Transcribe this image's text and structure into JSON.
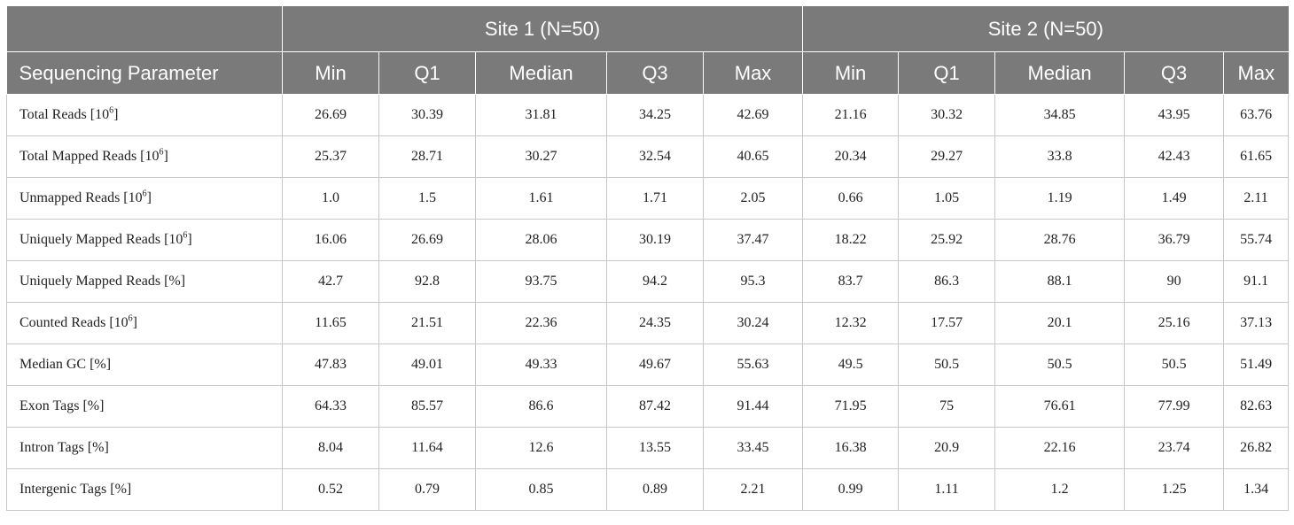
{
  "header": {
    "site1": "Site 1 (N=50)",
    "site2": "Site 2 (N=50)",
    "param": "Sequencing Parameter",
    "stats": [
      "Min",
      "Q1",
      "Median",
      "Q3",
      "Max"
    ]
  },
  "rows": [
    {
      "label": "Total Reads [10",
      "sup": "6",
      "suffix": "]",
      "s1": [
        "26.69",
        "30.39",
        "31.81",
        "34.25",
        "42.69"
      ],
      "s2": [
        "21.16",
        "30.32",
        "34.85",
        "43.95",
        "63.76"
      ]
    },
    {
      "label": "Total Mapped Reads [10",
      "sup": "6",
      "suffix": "]",
      "s1": [
        "25.37",
        "28.71",
        "30.27",
        "32.54",
        "40.65"
      ],
      "s2": [
        "20.34",
        "29.27",
        "33.8",
        "42.43",
        "61.65"
      ]
    },
    {
      "label": "Unmapped Reads [10",
      "sup": "6",
      "suffix": "]",
      "s1": [
        "1.0",
        "1.5",
        "1.61",
        "1.71",
        "2.05"
      ],
      "s2": [
        "0.66",
        "1.05",
        "1.19",
        "1.49",
        "2.11"
      ]
    },
    {
      "label": "Uniquely Mapped Reads [10",
      "sup": "6",
      "suffix": "]",
      "s1": [
        "16.06",
        "26.69",
        "28.06",
        "30.19",
        "37.47"
      ],
      "s2": [
        "18.22",
        "25.92",
        "28.76",
        "36.79",
        "55.74"
      ]
    },
    {
      "label": "Uniquely Mapped Reads [%]",
      "sup": "",
      "suffix": "",
      "s1": [
        "42.7",
        "92.8",
        "93.75",
        "94.2",
        "95.3"
      ],
      "s2": [
        "83.7",
        "86.3",
        "88.1",
        "90",
        "91.1"
      ]
    },
    {
      "label": "Counted Reads [10",
      "sup": "6",
      "suffix": "]",
      "s1": [
        "11.65",
        "21.51",
        "22.36",
        "24.35",
        "30.24"
      ],
      "s2": [
        "12.32",
        "17.57",
        "20.1",
        "25.16",
        "37.13"
      ]
    },
    {
      "label": "Median GC [%]",
      "sup": "",
      "suffix": "",
      "s1": [
        "47.83",
        "49.01",
        "49.33",
        "49.67",
        "55.63"
      ],
      "s2": [
        "49.5",
        "50.5",
        "50.5",
        "50.5",
        "51.49"
      ]
    },
    {
      "label": "Exon Tags [%]",
      "sup": "",
      "suffix": "",
      "s1": [
        "64.33",
        "85.57",
        "86.6",
        "87.42",
        "91.44"
      ],
      "s2": [
        "71.95",
        "75",
        "76.61",
        "77.99",
        "82.63"
      ]
    },
    {
      "label": "Intron Tags [%]",
      "sup": "",
      "suffix": "",
      "s1": [
        "8.04",
        "11.64",
        "12.6",
        "13.55",
        "33.45"
      ],
      "s2": [
        "16.38",
        "20.9",
        "22.16",
        "23.74",
        "26.82"
      ]
    },
    {
      "label": "Intergenic Tags [%]",
      "sup": "",
      "suffix": "",
      "s1": [
        "0.52",
        "0.79",
        "0.85",
        "0.89",
        "2.21"
      ],
      "s2": [
        "0.99",
        "1.11",
        "1.2",
        "1.25",
        "1.34"
      ]
    }
  ]
}
